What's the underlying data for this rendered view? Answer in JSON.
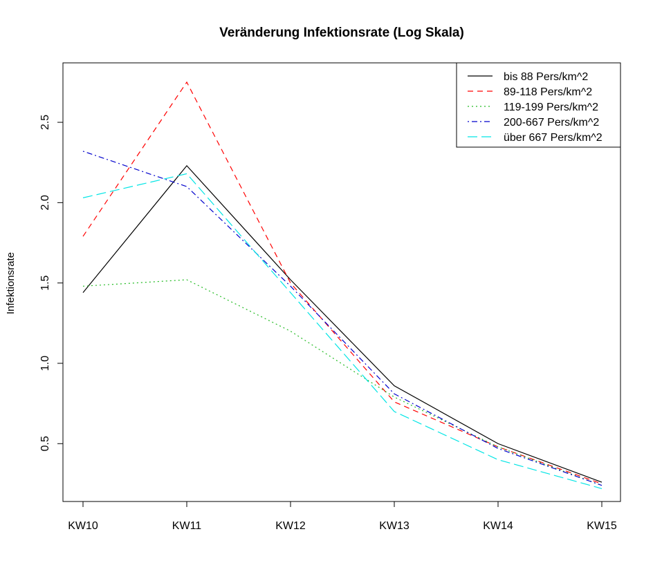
{
  "chart_data": {
    "type": "line",
    "title": "Veränderung Infektionsrate (Log Skala)",
    "xlabel": "",
    "ylabel": "Infektionsrate",
    "categories": [
      "KW10",
      "KW11",
      "KW12",
      "KW13",
      "KW14",
      "KW15"
    ],
    "y_ticks": [
      "0.5",
      "1.0",
      "1.5",
      "2.0",
      "2.5"
    ],
    "ylim": [
      0.14,
      2.87
    ],
    "grid": false,
    "legend_position": "top-right",
    "series": [
      {
        "name": "bis 88 Pers/km^2",
        "color": "#000000",
        "dash": "solid",
        "values": [
          1.44,
          2.23,
          1.52,
          0.86,
          0.5,
          0.26
        ]
      },
      {
        "name": "89-118 Pers/km^2",
        "color": "#ff0000",
        "dash": "dashed",
        "values": [
          1.79,
          2.75,
          1.5,
          0.76,
          0.48,
          0.25
        ]
      },
      {
        "name": "119-199 Pers/km^2",
        "color": "#22bb22",
        "dash": "dotted",
        "values": [
          1.48,
          1.52,
          1.2,
          0.79,
          0.48,
          0.24
        ]
      },
      {
        "name": "200-667 Pers/km^2",
        "color": "#0000cc",
        "dash": "dotdash",
        "values": [
          2.32,
          2.1,
          1.48,
          0.81,
          0.47,
          0.24
        ]
      },
      {
        "name": "über 667 Pers/km^2",
        "color": "#00e5e5",
        "dash": "longdash",
        "values": [
          2.03,
          2.18,
          1.44,
          0.7,
          0.4,
          0.22
        ]
      }
    ]
  }
}
